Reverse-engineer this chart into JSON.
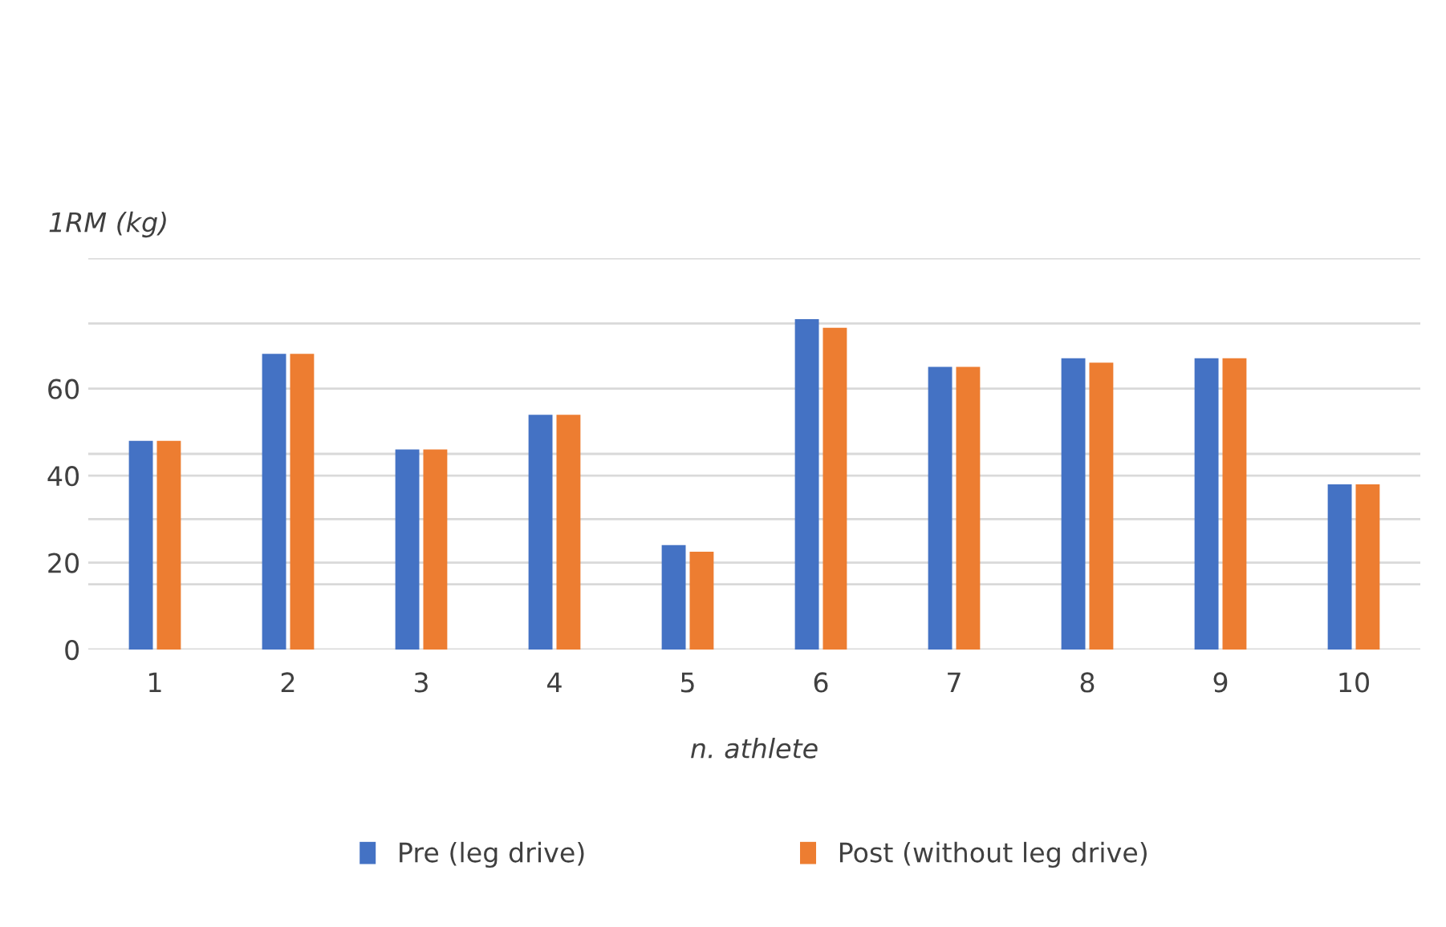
{
  "chart_data": {
    "type": "bar",
    "ylabel": "1RM (kg)",
    "xlabel": "n. athlete",
    "categories": [
      "1",
      "2",
      "3",
      "4",
      "5",
      "6",
      "7",
      "8",
      "9",
      "10"
    ],
    "series": [
      {
        "name": "Pre (leg drive)",
        "color": "#4472c4",
        "values": [
          48,
          68,
          46,
          54,
          24,
          76,
          65,
          67,
          67,
          38
        ]
      },
      {
        "name": "Post (without leg drive)",
        "color": "#ed7d31",
        "values": [
          48,
          68,
          46,
          54,
          22.5,
          74,
          65,
          66,
          67,
          38
        ]
      }
    ],
    "ylim": [
      0,
      90
    ],
    "yticks": [
      0,
      {
        "value": 15,
        "label": null
      },
      20,
      {
        "value": 30,
        "label": null
      },
      40,
      {
        "value": 45,
        "label": null
      },
      60,
      {
        "value": 75,
        "label": null
      },
      {
        "value": 90,
        "label": null
      }
    ],
    "grid": "y",
    "legend": "bottom"
  }
}
